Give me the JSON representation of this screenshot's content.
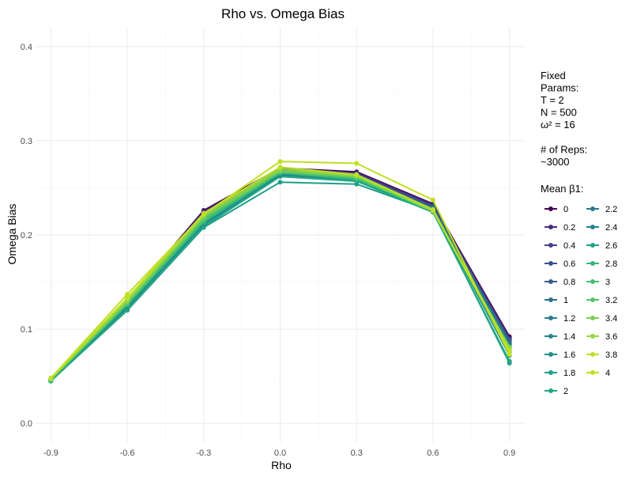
{
  "chart_data": {
    "type": "line",
    "title": "Rho vs. Omega Bias",
    "xlabel": "Rho",
    "ylabel": "Omega Bias",
    "x": [
      -0.9,
      -0.6,
      -0.3,
      0.0,
      0.3,
      0.6,
      0.9
    ],
    "x_ticks": [
      "-0.9",
      "-0.6",
      "-0.3",
      "0.0",
      "0.3",
      "0.6",
      "0.9"
    ],
    "y_ticks": [
      "0.0",
      "0.1",
      "0.2",
      "0.3",
      "0.4"
    ],
    "xlim": [
      -0.96,
      0.96
    ],
    "ylim": [
      -0.02,
      0.42
    ],
    "grid": true,
    "legend_position": "right",
    "side_text": [
      "Fixed",
      "Params:",
      "T = 2",
      "N = 500",
      "ω² = 16",
      "",
      "# of Reps:",
      "~3000"
    ],
    "legend_title": "Mean β1:",
    "series": [
      {
        "name": "0",
        "color": "#440154",
        "values": [
          0.046,
          0.131,
          0.226,
          0.271,
          0.267,
          0.233,
          0.092
        ]
      },
      {
        "name": "0.2",
        "color": "#472d7b",
        "values": [
          0.046,
          0.13,
          0.225,
          0.27,
          0.266,
          0.232,
          0.09
        ]
      },
      {
        "name": "0.4",
        "color": "#414487",
        "values": [
          0.046,
          0.128,
          0.223,
          0.269,
          0.265,
          0.231,
          0.089
        ]
      },
      {
        "name": "0.6",
        "color": "#3b528b",
        "values": [
          0.046,
          0.127,
          0.22,
          0.268,
          0.264,
          0.23,
          0.088
        ]
      },
      {
        "name": "0.8",
        "color": "#355f8d",
        "values": [
          0.046,
          0.126,
          0.218,
          0.267,
          0.263,
          0.229,
          0.087
        ]
      },
      {
        "name": "1",
        "color": "#2c728e",
        "values": [
          0.046,
          0.125,
          0.216,
          0.266,
          0.262,
          0.229,
          0.085
        ]
      },
      {
        "name": "1.2",
        "color": "#287d8e",
        "values": [
          0.045,
          0.123,
          0.213,
          0.265,
          0.261,
          0.228,
          0.084
        ]
      },
      {
        "name": "1.4",
        "color": "#23888e",
        "values": [
          0.045,
          0.122,
          0.211,
          0.264,
          0.259,
          0.227,
          0.08
        ]
      },
      {
        "name": "1.6",
        "color": "#21918c",
        "values": [
          0.045,
          0.121,
          0.209,
          0.263,
          0.258,
          0.226,
          0.072
        ]
      },
      {
        "name": "1.8",
        "color": "#1f9e89",
        "values": [
          0.045,
          0.12,
          0.208,
          0.256,
          0.254,
          0.225,
          0.064
        ]
      },
      {
        "name": "2",
        "color": "#22a884",
        "values": [
          0.045,
          0.121,
          0.209,
          0.262,
          0.257,
          0.224,
          0.066
        ]
      },
      {
        "name": "2.2",
        "color": "#2a788e",
        "values": [
          0.046,
          0.124,
          0.214,
          0.264,
          0.26,
          0.228,
          0.084
        ]
      },
      {
        "name": "2.4",
        "color": "#25848e",
        "values": [
          0.046,
          0.124,
          0.212,
          0.265,
          0.26,
          0.227,
          0.082
        ]
      },
      {
        "name": "2.6",
        "color": "#1fa188",
        "values": [
          0.046,
          0.125,
          0.213,
          0.265,
          0.259,
          0.226,
          0.078
        ]
      },
      {
        "name": "2.8",
        "color": "#35b779",
        "values": [
          0.046,
          0.126,
          0.214,
          0.266,
          0.259,
          0.226,
          0.076
        ]
      },
      {
        "name": "3",
        "color": "#44bf70",
        "values": [
          0.046,
          0.127,
          0.216,
          0.267,
          0.26,
          0.225,
          0.08
        ]
      },
      {
        "name": "3.2",
        "color": "#54c568",
        "values": [
          0.047,
          0.128,
          0.217,
          0.267,
          0.261,
          0.225,
          0.078
        ]
      },
      {
        "name": "3.4",
        "color": "#7ad151",
        "values": [
          0.047,
          0.129,
          0.219,
          0.268,
          0.262,
          0.225,
          0.081
        ]
      },
      {
        "name": "3.6",
        "color": "#95d840",
        "values": [
          0.047,
          0.131,
          0.221,
          0.27,
          0.263,
          0.226,
          0.079
        ]
      },
      {
        "name": "3.8",
        "color": "#bddf26",
        "values": [
          0.048,
          0.133,
          0.223,
          0.272,
          0.264,
          0.227,
          0.077
        ]
      },
      {
        "name": "4",
        "color": "#c2df23",
        "values": [
          0.048,
          0.137,
          0.222,
          0.278,
          0.276,
          0.237,
          0.073
        ]
      }
    ]
  }
}
